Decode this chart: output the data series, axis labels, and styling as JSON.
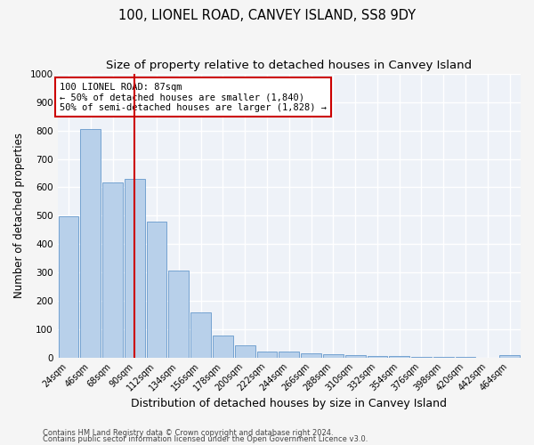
{
  "title1": "100, LIONEL ROAD, CANVEY ISLAND, SS8 9DY",
  "title2": "Size of property relative to detached houses in Canvey Island",
  "xlabel": "Distribution of detached houses by size in Canvey Island",
  "ylabel": "Number of detached properties",
  "categories": [
    "24sqm",
    "46sqm",
    "68sqm",
    "90sqm",
    "112sqm",
    "134sqm",
    "156sqm",
    "178sqm",
    "200sqm",
    "222sqm",
    "244sqm",
    "266sqm",
    "288sqm",
    "310sqm",
    "332sqm",
    "354sqm",
    "376sqm",
    "398sqm",
    "420sqm",
    "442sqm",
    "464sqm"
  ],
  "values": [
    497,
    805,
    617,
    630,
    478,
    307,
    159,
    78,
    43,
    22,
    20,
    14,
    10,
    7,
    5,
    5,
    3,
    2,
    1,
    0,
    8
  ],
  "bar_color": "#b8d0ea",
  "bar_edge_color": "#6699cc",
  "vline_color": "#cc0000",
  "vline_x_index": 3.0,
  "annotation_text": "100 LIONEL ROAD: 87sqm\n← 50% of detached houses are smaller (1,840)\n50% of semi-detached houses are larger (1,828) →",
  "annotation_box_color": "#ffffff",
  "annotation_box_edge_color": "#cc0000",
  "ylim": [
    0,
    1000
  ],
  "yticks": [
    0,
    100,
    200,
    300,
    400,
    500,
    600,
    700,
    800,
    900,
    1000
  ],
  "footer1": "Contains HM Land Registry data © Crown copyright and database right 2024.",
  "footer2": "Contains public sector information licensed under the Open Government Licence v3.0.",
  "background_color": "#eef2f8",
  "grid_color": "#ffffff",
  "title1_fontsize": 10.5,
  "title2_fontsize": 9.5,
  "tick_fontsize": 7,
  "ylabel_fontsize": 8.5,
  "xlabel_fontsize": 9,
  "footer_fontsize": 6,
  "annotation_fontsize": 7.5
}
